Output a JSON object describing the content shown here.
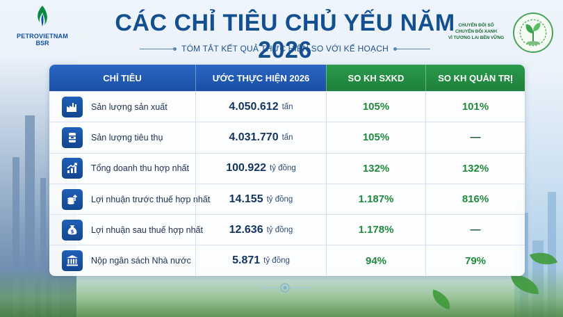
{
  "brand": {
    "name_line1": "PETROVIETNAM",
    "name_line2": "BSR"
  },
  "header": {
    "title": "CÁC CHỈ TIÊU CHỦ YẾU NĂM 2026",
    "subtitle": "TÓM TẮT KẾT QUẢ THỰC HIỆN SO VỚI KẾ HOẠCH"
  },
  "badge": {
    "line1": "CHUYỂN ĐỔI SỐ",
    "line2": "CHUYỂN ĐỔI XANH",
    "line3": "VÌ TƯƠNG LAI BỀN VỮNG"
  },
  "table": {
    "headers": [
      "CHỈ TIÊU",
      "ƯỚC THỰC HIỆN 2026",
      "SO KH SXKD",
      "SO KH QUẢN TRỊ"
    ],
    "rows": [
      {
        "icon": "factory-icon",
        "label": "Sản lượng sản xuất",
        "value": "4.050.612",
        "unit": "tấn",
        "sxkd": "105%",
        "quantri": "101%"
      },
      {
        "icon": "barrel-icon",
        "label": "Sản lượng tiêu thụ",
        "value": "4.031.770",
        "unit": "tấn",
        "sxkd": "105%",
        "quantri": "—"
      },
      {
        "icon": "chart-up-icon",
        "label": "Tổng doanh thu hợp nhất",
        "value": "100.922",
        "unit": "tỷ đồng",
        "sxkd": "132%",
        "quantri": "132%"
      },
      {
        "icon": "coins-up-icon",
        "label": "Lợi nhuận trước thuế hợp nhất",
        "value": "14.155",
        "unit": "tỷ đồng",
        "sxkd": "1.187%",
        "quantri": "816%"
      },
      {
        "icon": "money-bag-icon",
        "label": "Lợi nhuận sau thuế hợp nhất",
        "value": "12.636",
        "unit": "tỷ đồng",
        "sxkd": "1.178%",
        "quantri": "—"
      },
      {
        "icon": "government-icon",
        "label": "Nộp ngân sách Nhà nước",
        "value": "5.871",
        "unit": "tỷ đồng",
        "sxkd": "94%",
        "quantri": "79%"
      }
    ]
  },
  "colors": {
    "primary_blue": "#1a4fa5",
    "accent_green": "#1e7f3a",
    "title_blue": "#14508f"
  }
}
